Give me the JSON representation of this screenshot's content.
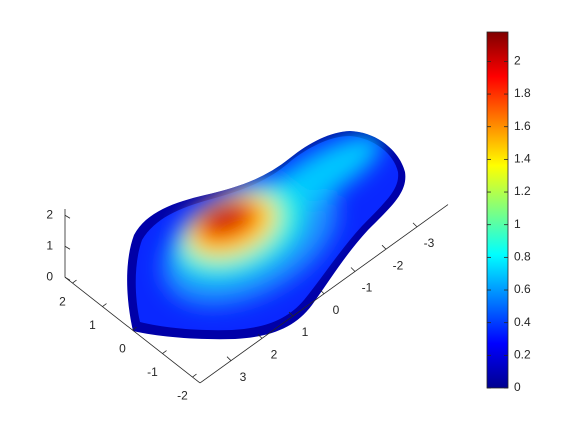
{
  "chart_data": {
    "type": "surface",
    "colormap": "jet",
    "xlim": [
      -2.25,
      2.25
    ],
    "xticks": [
      -2,
      -1,
      0,
      1,
      2
    ],
    "ylim": [
      -4,
      4
    ],
    "yticks": [
      -3,
      -2,
      -1,
      0,
      1,
      2,
      3
    ],
    "zlim": [
      0,
      2.2
    ],
    "zticks": [
      0,
      1,
      2
    ],
    "clim": [
      0,
      2.18
    ],
    "cticks": [
      0,
      0.2,
      0.4,
      0.6,
      0.8,
      1,
      1.2,
      1.4,
      1.6,
      1.8,
      2
    ]
  }
}
